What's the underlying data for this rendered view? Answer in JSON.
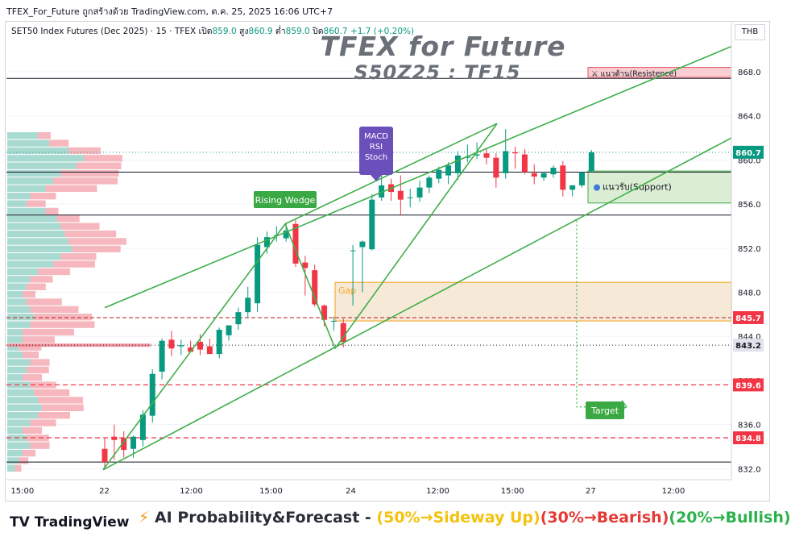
{
  "header": {
    "source_line": "TFEX_For_Future ถูกสร้างด้วย TradingView.com, ต.ค. 25, 2025 16:06 UTC+7",
    "instrument": "SET50 Index Futures (Dec 2025) · 15 · TFEX",
    "open_label": "เปิด",
    "open": "859.0",
    "high_label": "สูง",
    "high": "860.9",
    "low_label": "ต่ำ",
    "low": "859.0",
    "close_label": "ปิด",
    "close": "860.7",
    "change": "+1.7 (+0.20%)",
    "currency": "THB"
  },
  "overlay": {
    "title": "TFEX for Future",
    "subtitle": "S50Z25 : TF15"
  },
  "chart_data": {
    "type": "candlestick",
    "ylim": [
      831,
      871
    ],
    "y_ticks": [
      832.0,
      836.0,
      840.0,
      844.0,
      848.0,
      852.0,
      856.0,
      860.0,
      864.0,
      868.0
    ],
    "x_tick_labels": [
      {
        "label": "15:00",
        "pos": 0.022
      },
      {
        "label": "22",
        "pos": 0.135
      },
      {
        "label": "12:00",
        "pos": 0.255
      },
      {
        "label": "15:00",
        "pos": 0.365
      },
      {
        "label": "24",
        "pos": 0.475
      },
      {
        "label": "12:00",
        "pos": 0.595
      },
      {
        "label": "15:00",
        "pos": 0.698
      },
      {
        "label": "27",
        "pos": 0.806
      },
      {
        "label": "12:00",
        "pos": 0.92
      }
    ],
    "candles": [
      [
        833.8,
        834.8,
        831.9,
        832.6
      ],
      [
        834.9,
        836.0,
        832.8,
        834.6
      ],
      [
        834.8,
        835.4,
        833.0,
        833.7
      ],
      [
        833.8,
        835.0,
        833.0,
        834.9
      ],
      [
        834.6,
        837.3,
        834.0,
        836.9
      ],
      [
        836.8,
        841.0,
        836.2,
        840.6
      ],
      [
        840.8,
        843.8,
        840.1,
        843.6
      ],
      [
        843.7,
        844.5,
        842.2,
        842.9
      ],
      [
        843.1,
        843.7,
        842.3,
        843.2
      ],
      [
        843.0,
        843.6,
        842.7,
        842.6
      ],
      [
        843.5,
        844.2,
        842.3,
        842.8
      ],
      [
        843.1,
        843.8,
        842.4,
        842.4
      ],
      [
        842.4,
        844.8,
        842.0,
        844.6
      ],
      [
        844.1,
        845.0,
        843.6,
        845.0
      ],
      [
        845.1,
        846.6,
        844.6,
        846.2
      ],
      [
        846.2,
        848.5,
        845.7,
        847.5
      ],
      [
        847.0,
        853.0,
        846.2,
        852.3
      ],
      [
        852.1,
        853.5,
        851.5,
        853.0
      ],
      [
        853.2,
        854.0,
        852.6,
        853.2
      ],
      [
        852.9,
        854.3,
        852.6,
        853.6
      ],
      [
        854.2,
        854.6,
        850.3,
        850.6
      ],
      [
        850.7,
        851.3,
        847.7,
        850.2
      ],
      [
        850.0,
        850.5,
        846.7,
        846.9
      ],
      [
        846.8,
        846.9,
        844.9,
        845.5
      ],
      [
        845.4,
        845.8,
        844.5,
        845.4
      ],
      [
        845.2,
        845.6,
        843.0,
        843.5
      ],
      [
        851.8,
        852.3,
        846.8,
        851.8
      ],
      [
        852.1,
        852.7,
        848.0,
        852.6
      ],
      [
        851.9,
        856.9,
        851.8,
        856.4
      ],
      [
        856.6,
        858.7,
        856.3,
        857.7
      ],
      [
        857.8,
        858.3,
        856.3,
        857.1
      ],
      [
        857.2,
        858.6,
        855.0,
        856.4
      ],
      [
        856.6,
        857.4,
        855.7,
        856.6
      ],
      [
        856.6,
        858.1,
        856.2,
        857.5
      ],
      [
        857.5,
        858.6,
        857.0,
        858.4
      ],
      [
        858.3,
        859.4,
        857.9,
        859.1
      ],
      [
        858.6,
        859.8,
        857.8,
        859.5
      ],
      [
        858.8,
        860.8,
        858.2,
        860.4
      ],
      [
        860.2,
        861.4,
        859.8,
        860.3
      ],
      [
        860.4,
        861.6,
        860.1,
        860.5
      ],
      [
        860.6,
        861.0,
        859.6,
        860.2
      ],
      [
        860.2,
        860.6,
        857.5,
        858.4
      ],
      [
        858.8,
        862.8,
        858.3,
        860.8
      ],
      [
        860.7,
        861.2,
        859.2,
        860.6
      ],
      [
        860.5,
        861.0,
        858.7,
        858.9
      ],
      [
        858.8,
        859.6,
        857.8,
        858.5
      ],
      [
        858.4,
        858.9,
        858.1,
        858.8
      ],
      [
        858.7,
        859.5,
        858.4,
        859.3
      ],
      [
        859.5,
        859.9,
        856.7,
        857.3
      ],
      [
        857.3,
        857.7,
        856.7,
        857.7
      ],
      [
        857.7,
        858.9,
        857.5,
        858.9
      ],
      [
        859.0,
        860.9,
        858.9,
        860.7
      ]
    ],
    "price_labels": [
      {
        "value": 860.7,
        "text": "860.7",
        "color": "#089981"
      },
      {
        "value": 845.7,
        "text": "845.7",
        "color": "#f23645"
      },
      {
        "value": 843.2,
        "text": "843.2",
        "color": "#e0e3eb"
      },
      {
        "value": 839.6,
        "text": "839.6",
        "color": "#f23645"
      },
      {
        "value": 834.8,
        "text": "834.8",
        "color": "#f23645"
      }
    ],
    "annotations": {
      "resistance": "แนวต้าน(Resistence)",
      "support": "แนวรับ(Support)",
      "gap": "Gap",
      "rising_wedge": "Rising Wedge",
      "target": "Target",
      "indicator_line1": "MACD",
      "indicator_line2": "RSI",
      "indicator_line3": "Stoch"
    },
    "colors": {
      "up": "#089981",
      "down": "#f23645",
      "trend": "#3fae49",
      "gap_fill": "#f7e7d3",
      "gap_border": "#f5a623",
      "support_fill": "#dbeed3",
      "resistance_fill": "#f9cdd1",
      "callout": "#6b4fbb"
    }
  },
  "footer": {
    "logo_text": "TradingView",
    "forecast_lead": "AI Probability&Forecast - ",
    "forecast_a": "(50%→Sideway Up)",
    "forecast_b": "(30%→Bearish)",
    "forecast_c": "(20%→Bullish)"
  }
}
